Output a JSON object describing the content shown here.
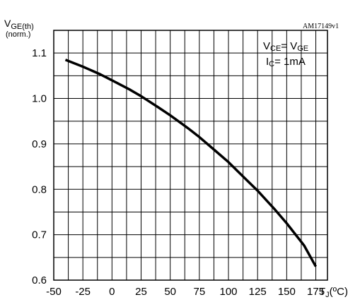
{
  "chart_data": {
    "type": "line",
    "ylabel": {
      "main": "V",
      "sub": "GE(th)",
      "line2": "(norm.)"
    },
    "xlabel": {
      "main": "T",
      "sub": "J",
      "unit": "(ºC)"
    },
    "reference": "AM17149v1",
    "conditions": {
      "line1": {
        "a": "V",
        "a_sub": "CE",
        "eq": "= V",
        "b_sub": "GE"
      },
      "line2": {
        "a": "I",
        "a_sub": "C",
        "rest": "= 1mA"
      }
    },
    "xlim": [
      -50,
      185
    ],
    "ylim": [
      0.6,
      1.15
    ],
    "x_ticks": [
      -50,
      -25,
      0,
      25,
      50,
      75,
      100,
      125,
      150,
      175
    ],
    "x_tick_labels": [
      "-50",
      "-25",
      "0",
      "25",
      "50",
      "75",
      "100",
      "125",
      "150",
      "175"
    ],
    "y_ticks": [
      0.6,
      0.7,
      0.8,
      0.9,
      1.0,
      1.1
    ],
    "y_tick_labels": [
      "0.6",
      "0.7",
      "0.8",
      "0.9",
      "1.0",
      "1.1"
    ],
    "grid": true,
    "series": [
      {
        "x": [
          -40,
          -25,
          -10,
          0,
          15,
          25,
          40,
          50,
          65,
          75,
          90,
          100,
          115,
          125,
          140,
          150,
          165,
          175
        ],
        "y": [
          1.085,
          1.07,
          1.053,
          1.04,
          1.02,
          1.005,
          0.98,
          0.963,
          0.935,
          0.915,
          0.882,
          0.86,
          0.822,
          0.797,
          0.755,
          0.725,
          0.676,
          0.63
        ]
      }
    ]
  }
}
